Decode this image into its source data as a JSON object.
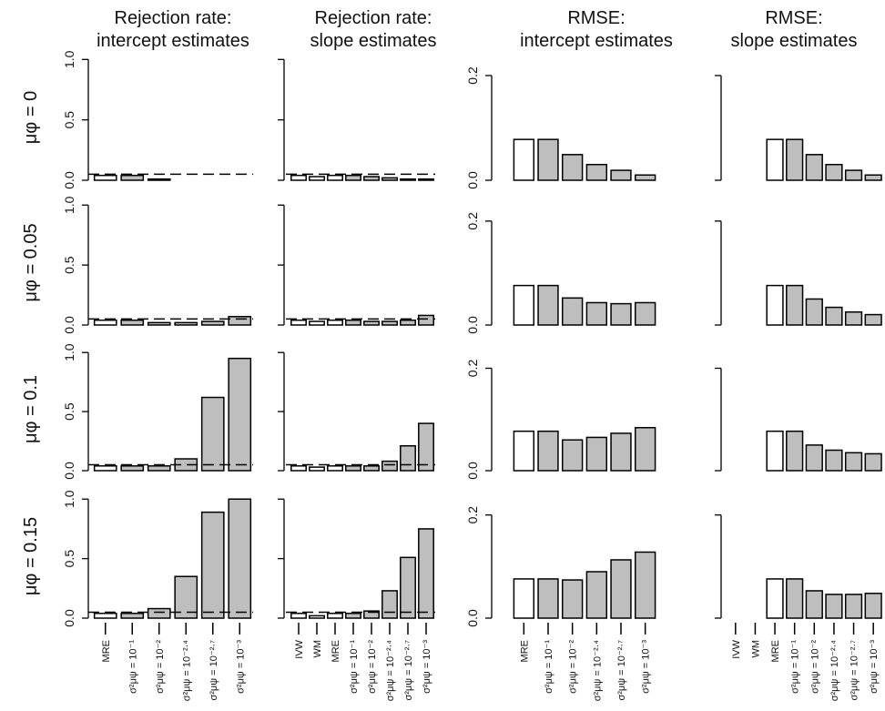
{
  "chart_data": {
    "type": "bar",
    "rows": [
      "μφ = 0",
      "μφ = 0.05",
      "μφ = 0.1",
      "μφ = 0.15"
    ],
    "columns": [
      {
        "title": [
          "Rejection rate:",
          "intercept estimates"
        ],
        "categories": [
          "MRE",
          "σ²μψ = 10⁻¹",
          "σ²μψ = 10⁻²",
          "σ²μψ = 10⁻²·⁴",
          "σ²μψ = 10⁻²·⁷",
          "σ²μψ = 10⁻³"
        ],
        "colors": [
          "#ffffff",
          "#bebebe",
          "#bebebe",
          "#bebebe",
          "#bebebe",
          "#bebebe"
        ],
        "ylim": [
          0,
          1.04
        ],
        "yticks": [
          {
            "value": 0,
            "label": "0.0"
          },
          {
            "value": 0.5,
            "label": "0.5"
          },
          {
            "value": 1,
            "label": "1.0"
          }
        ],
        "tick_labels": true,
        "reference_line": 0.05
      },
      {
        "title": [
          "Rejection rate:",
          "slope estimates"
        ],
        "categories": [
          "IVW",
          "WM",
          "MRE",
          "σ²μψ = 10⁻¹",
          "σ²μψ = 10⁻²",
          "σ²μψ = 10⁻²·⁴",
          "σ²μψ = 10⁻²·⁷",
          "σ²μψ = 10⁻³"
        ],
        "colors": [
          "#ffffff",
          "#ffffff",
          "#ffffff",
          "#bebebe",
          "#bebebe",
          "#bebebe",
          "#bebebe",
          "#bebebe"
        ],
        "ylim": [
          0,
          1.04
        ],
        "yticks": [
          0,
          0.5,
          1
        ],
        "tick_labels": false,
        "reference_line": 0.05
      },
      {
        "title": [
          "RMSE:",
          "intercept estimates"
        ],
        "categories": [
          "MRE",
          "σ²μψ = 10⁻¹",
          "σ²μψ = 10⁻²",
          "σ²μψ = 10⁻²·⁴",
          "σ²μψ = 10⁻²·⁷",
          "σ²μψ = 10⁻³"
        ],
        "colors": [
          "#ffffff",
          "#bebebe",
          "#bebebe",
          "#bebebe",
          "#bebebe",
          "#bebebe"
        ],
        "ylim": [
          0,
          0.24
        ],
        "yticks": [
          {
            "value": 0,
            "label": "0.0"
          },
          {
            "value": 0.2,
            "label": "0.2"
          }
        ],
        "tick_labels": true
      },
      {
        "title": [
          "RMSE:",
          "slope estimates"
        ],
        "categories": [
          "IVW",
          "WM",
          "MRE",
          "σ²μψ = 10⁻¹",
          "σ²μψ = 10⁻²",
          "σ²μψ = 10⁻²·⁴",
          "σ²μψ = 10⁻²·⁷",
          "σ²μψ = 10⁻³"
        ],
        "colors": [
          "#ffffff",
          "#ffffff",
          "#ffffff",
          "#bebebe",
          "#bebebe",
          "#bebebe",
          "#bebebe",
          "#bebebe"
        ],
        "ylim": [
          0,
          0.24
        ],
        "yticks": [
          0,
          0.2
        ],
        "tick_labels": false
      }
    ],
    "values": [
      [
        [
          0.04,
          0.04,
          0.01,
          0.0,
          0.0,
          0.0
        ],
        [
          0.04,
          0.03,
          0.04,
          0.04,
          0.03,
          0.02,
          0.01,
          0.01
        ],
        [
          0.078,
          0.078,
          0.049,
          0.03,
          0.019,
          0.01
        ],
        [
          0.0,
          0.0,
          0.078,
          0.078,
          0.049,
          0.03,
          0.019,
          0.01
        ]
      ],
      [
        [
          0.04,
          0.04,
          0.02,
          0.02,
          0.03,
          0.07
        ],
        [
          0.04,
          0.03,
          0.04,
          0.04,
          0.03,
          0.03,
          0.04,
          0.08
        ],
        [
          0.076,
          0.076,
          0.052,
          0.043,
          0.041,
          0.043
        ],
        [
          0.0,
          0.0,
          0.076,
          0.076,
          0.05,
          0.034,
          0.025,
          0.02
        ]
      ],
      [
        [
          0.04,
          0.04,
          0.04,
          0.1,
          0.62,
          0.95
        ],
        [
          0.04,
          0.03,
          0.04,
          0.04,
          0.04,
          0.08,
          0.21,
          0.4
        ],
        [
          0.077,
          0.077,
          0.06,
          0.065,
          0.073,
          0.084
        ],
        [
          0.0,
          0.0,
          0.077,
          0.077,
          0.05,
          0.04,
          0.035,
          0.033
        ]
      ],
      [
        [
          0.04,
          0.04,
          0.08,
          0.35,
          0.89,
          1.0
        ],
        [
          0.04,
          0.02,
          0.04,
          0.04,
          0.06,
          0.23,
          0.51,
          0.75
        ],
        [
          0.076,
          0.076,
          0.074,
          0.09,
          0.113,
          0.128
        ],
        [
          0.0,
          0.0,
          0.076,
          0.076,
          0.053,
          0.046,
          0.046,
          0.048
        ]
      ]
    ]
  }
}
